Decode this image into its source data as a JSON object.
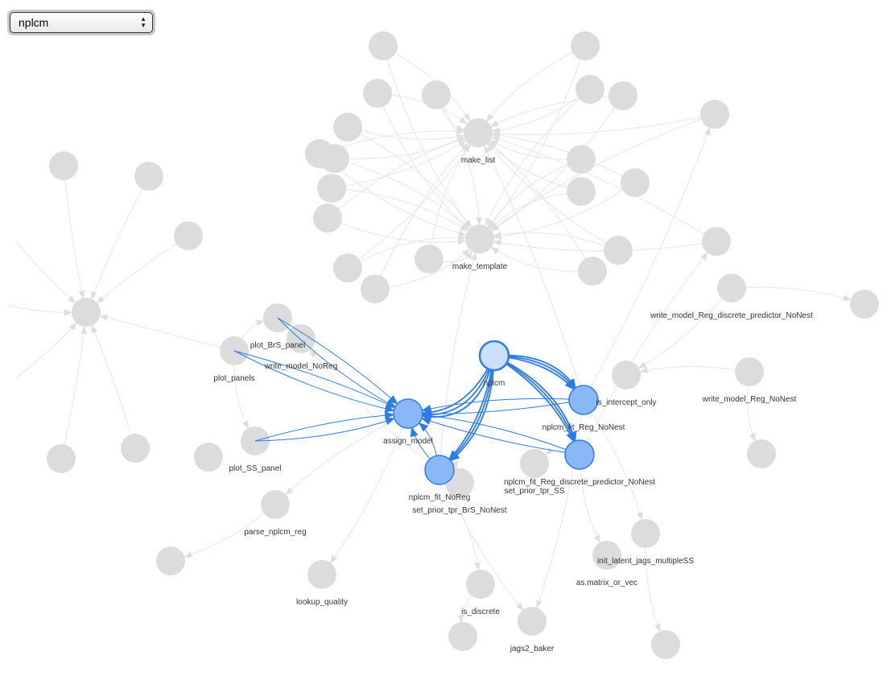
{
  "selector": {
    "value": "nplcm",
    "icon": "updown-chevron-icon"
  },
  "colors": {
    "node_grey": "#dcdcdc",
    "node_blue": "#8ab8f7",
    "node_selected": "#cce0fb",
    "edge_grey": "#e6e6e6",
    "edge_blue": "#2b7ce9"
  },
  "graph": {
    "labeled_nodes": [
      {
        "label": "make_list",
        "state": "dim"
      },
      {
        "label": "make_template",
        "state": "dim"
      },
      {
        "label": "write_model_Reg_discrete_predictor_NoNest",
        "state": "dim"
      },
      {
        "label": "plot_BrS_panel",
        "state": "dim"
      },
      {
        "label": "write_model_NoReg",
        "state": "dim"
      },
      {
        "label": "plot_panels",
        "state": "dim"
      },
      {
        "label": "nplcm",
        "state": "selected"
      },
      {
        "label": "is_intercept_only",
        "state": "dim"
      },
      {
        "label": "write_model_Reg_NoNest",
        "state": "dim"
      },
      {
        "label": "nplcm_fit_Reg_NoNest",
        "state": "highlight"
      },
      {
        "label": "assign_model",
        "state": "highlight"
      },
      {
        "label": "plot_SS_panel",
        "state": "dim"
      },
      {
        "label": "nplcm_fit_Reg_discrete_predictor_NoNest",
        "state": "highlight"
      },
      {
        "label": "set_prior_tpr_SS",
        "state": "dim"
      },
      {
        "label": "nplcm_fit_NoReg",
        "state": "highlight"
      },
      {
        "label": "set_prior_tpr_BrS_NoNest",
        "state": "dim"
      },
      {
        "label": "parse_nplcm_reg",
        "state": "dim"
      },
      {
        "label": "init_latent_jags_multipleSS",
        "state": "dim"
      },
      {
        "label": "as.matrix_or_vec",
        "state": "dim"
      },
      {
        "label": "lookup_quality",
        "state": "dim"
      },
      {
        "label": "is_discrete",
        "state": "dim"
      },
      {
        "label": "jags2_baker",
        "state": "dim"
      }
    ],
    "highlighted_edges": [
      {
        "from": "nplcm",
        "to": "assign_model"
      },
      {
        "from": "nplcm",
        "to": "nplcm_fit_NoReg"
      },
      {
        "from": "nplcm",
        "to": "nplcm_fit_Reg_NoNest"
      },
      {
        "from": "nplcm",
        "to": "nplcm_fit_Reg_discrete_predictor_NoNest"
      },
      {
        "from": "plot_BrS_panel",
        "to": "assign_model"
      },
      {
        "from": "plot_panels",
        "to": "assign_model"
      },
      {
        "from": "plot_SS_panel",
        "to": "assign_model"
      },
      {
        "from": "nplcm_fit_NoReg",
        "to": "assign_model"
      },
      {
        "from": "nplcm_fit_Reg_NoNest",
        "to": "assign_model"
      },
      {
        "from": "nplcm_fit_Reg_discrete_predictor_NoNest",
        "to": "assign_model"
      }
    ]
  }
}
